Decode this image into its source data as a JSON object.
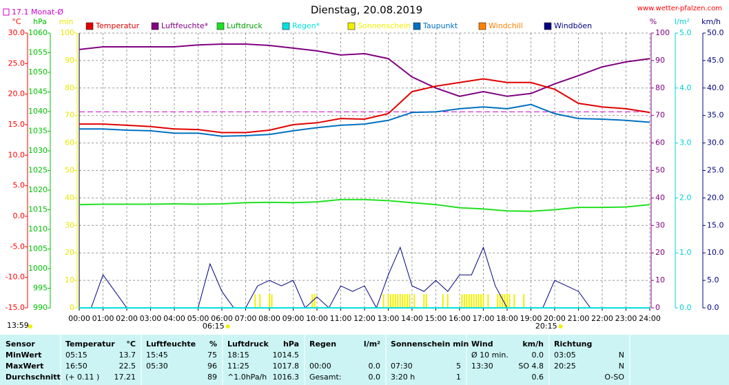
{
  "chart_data": {
    "type": "line",
    "title": "Dienstag, 20.08.2019",
    "source": "www.wetter-pfalzen.com",
    "update_time": "13:59",
    "monthly_avg": {
      "label": "17.1 Monat-Ø",
      "value": 17.1,
      "color": "#cc00cc",
      "axis": "temp"
    },
    "sunrise": {
      "label": "06:15",
      "value": 6.25
    },
    "sunset": {
      "label": "20:15",
      "value": 20.25
    },
    "grid": true,
    "xlim": [
      0,
      24
    ],
    "xticks": [
      {
        "value": 0,
        "label": "00:00"
      },
      {
        "value": 1,
        "label": "01:00"
      },
      {
        "value": 2,
        "label": "02:00"
      },
      {
        "value": 3,
        "label": "03:00"
      },
      {
        "value": 4,
        "label": "04:00"
      },
      {
        "value": 5,
        "label": "05:00"
      },
      {
        "value": 6,
        "label": "06:00"
      },
      {
        "value": 7,
        "label": "07:00"
      },
      {
        "value": 8,
        "label": "08:00"
      },
      {
        "value": 9,
        "label": "09:00"
      },
      {
        "value": 10,
        "label": "10:00"
      },
      {
        "value": 11,
        "label": "11:00"
      },
      {
        "value": 12,
        "label": "12:00"
      },
      {
        "value": 13,
        "label": "13:00"
      },
      {
        "value": 14,
        "label": "14:00"
      },
      {
        "value": 15,
        "label": "15:00"
      },
      {
        "value": 16,
        "label": "16:00"
      },
      {
        "value": 17,
        "label": "17:00"
      },
      {
        "value": 18,
        "label": "18:00"
      },
      {
        "value": 19,
        "label": "19:00"
      },
      {
        "value": 20,
        "label": "20:00"
      },
      {
        "value": 21,
        "label": "21:00"
      },
      {
        "value": 22,
        "label": "22:00"
      },
      {
        "value": 23,
        "label": "23:00"
      },
      {
        "value": 24,
        "label": "24:00"
      }
    ],
    "x": [
      0,
      1,
      2,
      3,
      4,
      5,
      6,
      7,
      8,
      9,
      10,
      11,
      12,
      13,
      14,
      15,
      16,
      17,
      18,
      19,
      20,
      21,
      22,
      23,
      24
    ],
    "axes": {
      "temp": {
        "label": "°C",
        "side": "left",
        "color": "#ff0000",
        "lim": [
          -15,
          30
        ],
        "ticks": [
          {
            "value": -15,
            "label": "-15.0"
          },
          {
            "value": -10,
            "label": "-10.0"
          },
          {
            "value": -5,
            "label": "-5.0"
          },
          {
            "value": 0,
            "label": "0.0"
          },
          {
            "value": 5,
            "label": "5.0"
          },
          {
            "value": 10,
            "label": "10.0"
          },
          {
            "value": 15,
            "label": "15.0"
          },
          {
            "value": 20,
            "label": "20.0"
          },
          {
            "value": 25,
            "label": "25.0"
          },
          {
            "value": 30,
            "label": "30.0"
          }
        ]
      },
      "press": {
        "label": "hPa",
        "side": "left",
        "color": "#00c000",
        "lim": [
          990,
          1060
        ],
        "ticks": [
          990,
          995,
          1000,
          1005,
          1010,
          1015,
          1020,
          1025,
          1030,
          1035,
          1040,
          1045,
          1050,
          1055,
          1060
        ]
      },
      "min": {
        "label": "min",
        "side": "left",
        "color": "#e8e800",
        "lim": [
          0,
          100
        ],
        "ticks": [
          0,
          10,
          20,
          30,
          40,
          50,
          60,
          70,
          80,
          90,
          100
        ]
      },
      "hum": {
        "label": "%",
        "side": "right",
        "color": "#800080",
        "lim": [
          0,
          100
        ],
        "ticks": [
          0,
          10,
          20,
          30,
          40,
          50,
          60,
          70,
          80,
          90,
          100
        ]
      },
      "rain": {
        "label": "l/m²",
        "side": "right",
        "color": "#00d0d0",
        "lim": [
          0,
          5
        ],
        "ticks": [
          {
            "value": 0,
            "label": "0.0"
          },
          {
            "value": 1,
            "label": "1.0"
          },
          {
            "value": 2,
            "label": "2.0"
          },
          {
            "value": 3,
            "label": "3.0"
          },
          {
            "value": 4,
            "label": "4.0"
          },
          {
            "value": 5,
            "label": "5.0"
          }
        ]
      },
      "wind": {
        "label": "km/h",
        "side": "right",
        "color": "#000080",
        "lim": [
          0,
          50
        ],
        "ticks": [
          {
            "value": 0,
            "label": "0.0"
          },
          {
            "value": 5,
            "label": "5.0"
          },
          {
            "value": 10,
            "label": "10.0"
          },
          {
            "value": 15,
            "label": "15.0"
          },
          {
            "value": 20,
            "label": "20.0"
          },
          {
            "value": 25,
            "label": "25.0"
          },
          {
            "value": 30,
            "label": "30.0"
          },
          {
            "value": 35,
            "label": "35.0"
          },
          {
            "value": 40,
            "label": "40.0"
          },
          {
            "value": 45,
            "label": "45.0"
          },
          {
            "value": 50,
            "label": "50.0"
          }
        ]
      }
    },
    "series": [
      {
        "name": "Temperatur",
        "color": "#e00000",
        "axis": "temp",
        "type": "line",
        "values": [
          15.1,
          15.1,
          14.9,
          14.7,
          14.3,
          14.2,
          13.7,
          13.7,
          14.1,
          15.0,
          15.3,
          16.0,
          15.9,
          16.8,
          20.4,
          21.3,
          21.9,
          22.5,
          21.9,
          21.9,
          20.8,
          18.5,
          17.9,
          17.6,
          17.0
        ]
      },
      {
        "name": "Luftfeuchte*",
        "color": "#800080",
        "axis": "hum",
        "type": "line",
        "values": [
          94.0,
          95.0,
          95.0,
          95.0,
          95.0,
          95.7,
          96.0,
          96.0,
          95.5,
          94.5,
          93.5,
          92.0,
          92.5,
          90.7,
          84.0,
          80.0,
          77.0,
          78.7,
          77.0,
          78.0,
          81.5,
          84.5,
          87.7,
          89.5,
          90.7
        ]
      },
      {
        "name": "Luftdruck",
        "color": "#20e020",
        "axis": "press",
        "type": "line",
        "values": [
          1016.3,
          1016.4,
          1016.4,
          1016.4,
          1016.5,
          1016.4,
          1016.5,
          1016.8,
          1016.9,
          1016.8,
          1017.0,
          1017.6,
          1017.6,
          1017.3,
          1016.8,
          1016.3,
          1015.5,
          1015.2,
          1014.7,
          1014.6,
          1015.0,
          1015.6,
          1015.6,
          1015.7,
          1016.3
        ]
      },
      {
        "name": "Regen*",
        "color": "#00e0e0",
        "axis": "rain",
        "type": "line",
        "values": [
          0,
          0,
          0,
          0,
          0,
          0,
          0,
          0,
          0,
          0,
          0,
          0,
          0,
          0,
          0,
          0,
          0,
          0,
          0,
          0,
          0,
          0,
          0,
          0,
          0
        ]
      },
      {
        "name": "Sonnenschein",
        "color": "#f0f000",
        "axis": "min",
        "type": "bar",
        "x": [
          7.4,
          7.6,
          8.0,
          8.1,
          9.8,
          9.9,
          12.8,
          13.0,
          13.1,
          13.2,
          13.3,
          13.4,
          13.5,
          13.6,
          13.7,
          13.8,
          13.9,
          14.1,
          14.5,
          14.6,
          15.3,
          15.5,
          16.1,
          16.2,
          16.3,
          16.4,
          16.5,
          16.6,
          16.7,
          16.8,
          16.9,
          17.0,
          17.2,
          17.6,
          17.7,
          17.8,
          17.9,
          18.0,
          18.1,
          18.3,
          18.7
        ],
        "values": [
          5,
          5,
          5,
          5,
          5,
          5,
          5,
          5,
          5,
          5,
          5,
          5,
          5,
          5,
          5,
          5,
          5,
          5,
          5,
          5,
          5,
          5,
          5,
          5,
          5,
          5,
          5,
          5,
          5,
          5,
          5,
          5,
          5,
          5,
          5,
          5,
          5,
          5,
          5,
          5,
          5
        ]
      },
      {
        "name": "Taupunkt",
        "color": "#0070c0",
        "axis": "temp",
        "type": "line",
        "values": [
          14.3,
          14.3,
          14.1,
          14.0,
          13.6,
          13.6,
          13.1,
          13.2,
          13.4,
          14.0,
          14.5,
          14.9,
          15.1,
          15.7,
          17.0,
          17.1,
          17.6,
          17.9,
          17.6,
          18.3,
          16.8,
          16.0,
          15.9,
          15.7,
          15.4
        ]
      },
      {
        "name": "Windchill",
        "color": "#ff8000",
        "axis": "temp",
        "type": "line",
        "values": [
          null,
          null,
          null,
          null,
          null,
          null,
          null,
          null,
          null,
          null,
          null,
          null,
          null,
          null,
          null,
          null,
          null,
          null,
          null,
          null,
          null,
          null,
          null,
          null,
          null
        ]
      },
      {
        "name": "Windböen",
        "color": "#000080",
        "axis": "wind",
        "type": "line",
        "x": [
          0,
          0.5,
          1,
          1.5,
          2,
          2.5,
          3,
          3.5,
          4,
          4.5,
          5,
          5.5,
          6,
          6.5,
          7,
          7.5,
          8,
          8.5,
          9,
          9.5,
          10,
          10.5,
          11,
          11.5,
          12,
          12.5,
          13,
          13.5,
          14,
          14.5,
          15,
          15.5,
          16,
          16.5,
          17,
          17.5,
          18,
          18.5,
          19,
          19.5,
          20,
          20.5,
          21,
          21.5,
          22,
          22.5,
          23,
          23.5,
          24
        ],
        "values": [
          0,
          0,
          6,
          3,
          0,
          0,
          0,
          0,
          0,
          0,
          0,
          8,
          3,
          0,
          0,
          4,
          5,
          4,
          5,
          0,
          2,
          0,
          4,
          3,
          4,
          0,
          6,
          11,
          4,
          3,
          5,
          3,
          6,
          6,
          11,
          4,
          0,
          0,
          0,
          0,
          5,
          4,
          3,
          0,
          0,
          0,
          0,
          0,
          0
        ]
      }
    ]
  },
  "table": {
    "rows": [
      [
        "Sensor",
        "Temperatur",
        "°C",
        "Luftfeuchte",
        "%",
        "Luftdruck",
        "hPa",
        "Regen",
        "l/m²",
        "Sonnenschein min",
        null,
        "Wind",
        "km/h",
        "Richtung",
        null
      ],
      [
        "MinWert",
        "05:15",
        "13.7",
        "15:45",
        "75",
        "18:15",
        "1014.5",
        null,
        null,
        null,
        null,
        "Ø 10 min.",
        "0.0",
        "03:05",
        "N"
      ],
      [
        "MaxWert",
        "16:50",
        "22.5",
        "05:30",
        "96",
        "11:25",
        "1017.8",
        "00:00",
        "0.0",
        "07:30",
        "5",
        "13:30",
        "SO 4.8",
        "20:25",
        "N"
      ],
      [
        "Durchschnitt",
        "(+ 0.11 )",
        "17.21",
        null,
        "89",
        "^1.0hPa/h",
        "1016.3",
        "Gesamt:",
        "0.0",
        "3:20 h",
        "1",
        null,
        "0.6",
        null,
        "O-SO"
      ]
    ]
  }
}
